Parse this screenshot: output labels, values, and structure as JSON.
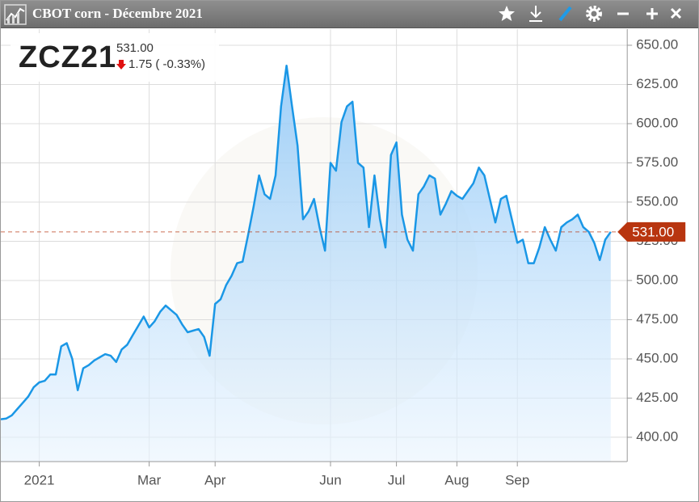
{
  "header": {
    "title": "CBOT corn - Décembre 2021",
    "symbol": "ZCZ21",
    "price": "531.00",
    "change": "1.75 ( -0.33%)"
  },
  "chart_data": {
    "type": "area",
    "color": "#1a97e6",
    "values": [
      411.5,
      412,
      414,
      418,
      422,
      426,
      432,
      435,
      436,
      440,
      440,
      458,
      460,
      450,
      430,
      444,
      446,
      449,
      451,
      453,
      452,
      448,
      456,
      459,
      465,
      471,
      477,
      470,
      474,
      480,
      484,
      481,
      478,
      472,
      467,
      468,
      469,
      464,
      452,
      485,
      488,
      497,
      503,
      511,
      512,
      529,
      547,
      567,
      555,
      552,
      567,
      611,
      637,
      611,
      586,
      539,
      544,
      552,
      534,
      519,
      575,
      570,
      601,
      611,
      614,
      575,
      572,
      534,
      567,
      539,
      521,
      580,
      588,
      542,
      526,
      519,
      555,
      560,
      567,
      565,
      542,
      549,
      557,
      554,
      552,
      557,
      562,
      572,
      567,
      552,
      537,
      552,
      554,
      539,
      524,
      526,
      511,
      511,
      521,
      534,
      526,
      519,
      534,
      537,
      539,
      542,
      534,
      531,
      524,
      513,
      526,
      531
    ],
    "xlim": [
      0,
      114
    ],
    "xticks": [
      {
        "value": 7,
        "label": "2021"
      },
      {
        "value": 27,
        "label": "Mar"
      },
      {
        "value": 39,
        "label": "Apr"
      },
      {
        "value": 60,
        "label": "Jun"
      },
      {
        "value": 72,
        "label": "Jul"
      },
      {
        "value": 83,
        "label": "Aug"
      },
      {
        "value": 94,
        "label": "Sep"
      }
    ],
    "ylim": [
      384.5,
      660.3
    ],
    "yticks": [
      {
        "value": 400,
        "label": "400.00"
      },
      {
        "value": 425,
        "label": "425.00"
      },
      {
        "value": 450,
        "label": "450.00"
      },
      {
        "value": 475,
        "label": "475.00"
      },
      {
        "value": 500,
        "label": "500.00"
      },
      {
        "value": 525,
        "label": "525.00"
      },
      {
        "value": 550,
        "label": "550.00"
      },
      {
        "value": 575,
        "label": "575.00"
      },
      {
        "value": 600,
        "label": "600.00"
      },
      {
        "value": 625,
        "label": "625.00"
      },
      {
        "value": 650,
        "label": "650.00"
      }
    ],
    "grid": true,
    "last": {
      "value": 531,
      "label": "531.00",
      "color": "#b8350f"
    }
  }
}
